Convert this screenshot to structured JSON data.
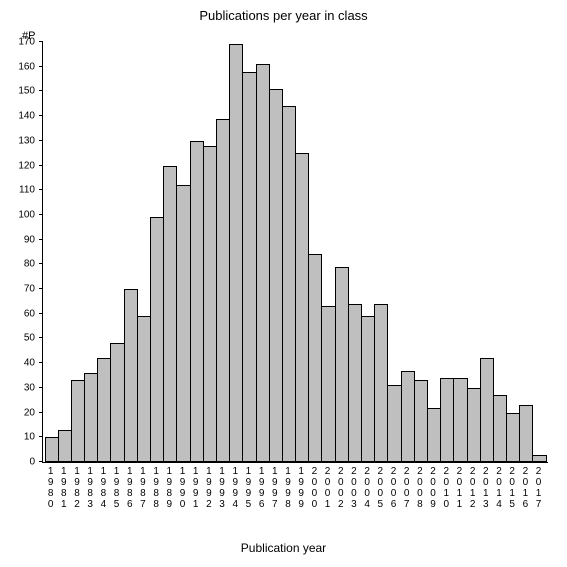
{
  "chart": {
    "type": "bar",
    "title": "Publications per year in class",
    "title_fontsize": 13,
    "ylabel_hash": "#P",
    "xlabel": "Publication year",
    "xlabel_fontsize": 12,
    "label_fontsize": 10,
    "background_color": "#ffffff",
    "bar_color": "#bfbfbf",
    "bar_border_color": "#000000",
    "axis_color": "#000000",
    "text_color": "#000000",
    "bar_width": 1.0,
    "ylim": [
      0,
      170
    ],
    "ytick_step": 10,
    "yticks": [
      0,
      10,
      20,
      30,
      40,
      50,
      60,
      70,
      80,
      90,
      100,
      110,
      120,
      130,
      140,
      150,
      160,
      170
    ],
    "categories": [
      "1980",
      "1981",
      "1982",
      "1983",
      "1984",
      "1985",
      "1986",
      "1987",
      "1988",
      "1989",
      "1990",
      "1991",
      "1992",
      "1993",
      "1994",
      "1995",
      "1996",
      "1997",
      "1998",
      "1999",
      "2000",
      "2001",
      "2002",
      "2003",
      "2004",
      "2005",
      "2006",
      "2007",
      "2008",
      "2009",
      "2010",
      "2011",
      "2012",
      "2013",
      "2014",
      "2015",
      "2016",
      "2017"
    ],
    "values": [
      10,
      13,
      33,
      36,
      42,
      48,
      70,
      59,
      99,
      120,
      112,
      130,
      128,
      139,
      169,
      158,
      161,
      151,
      144,
      125,
      84,
      63,
      79,
      64,
      59,
      64,
      31,
      37,
      33,
      22,
      34,
      34,
      30,
      42,
      27,
      20,
      23,
      3
    ]
  }
}
